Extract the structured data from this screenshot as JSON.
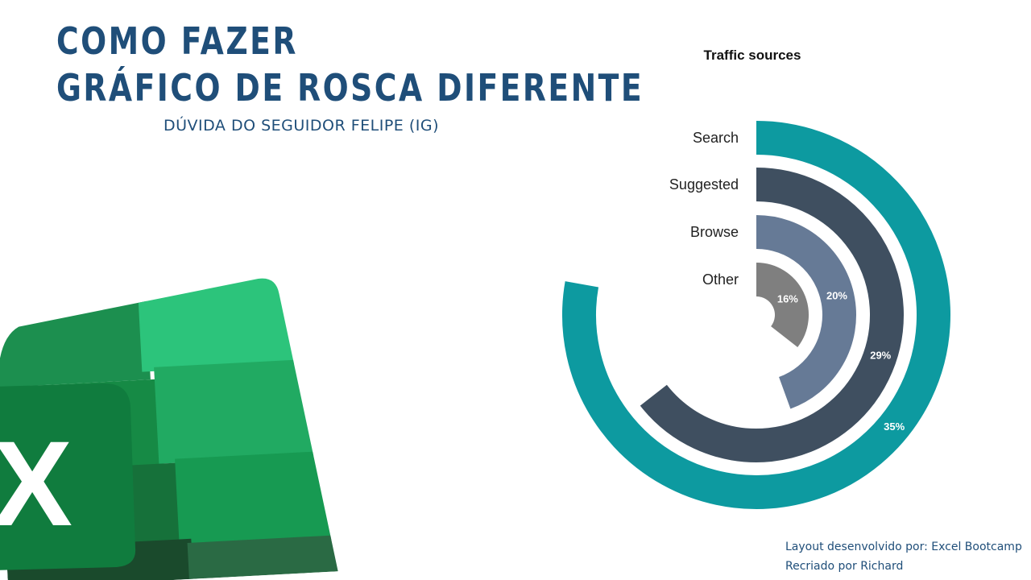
{
  "header": {
    "title_line1": "COMO FAZER",
    "title_line2": "GRÁFICO DE ROSCA DIFERENTE",
    "subtitle": "DÚVIDA DO SEGUIDOR FELIPE (IG)"
  },
  "logo": {
    "icon": "excel-logo-icon",
    "letter": "X"
  },
  "chart_data": {
    "type": "radial-bar",
    "title": "Traffic sources",
    "categories": [
      "Search",
      "Suggested",
      "Browse",
      "Other"
    ],
    "values": [
      35,
      29,
      20,
      16
    ],
    "value_labels": [
      "35%",
      "29%",
      "20%",
      "16%"
    ],
    "colors": [
      "#0d9aa0",
      "#3f4f60",
      "#667a96",
      "#7f7f7f"
    ],
    "max_value": 45
  },
  "credits": {
    "line1": "Layout desenvolvido por: Excel Bootcamp",
    "line2": "Recriado por Richard"
  }
}
